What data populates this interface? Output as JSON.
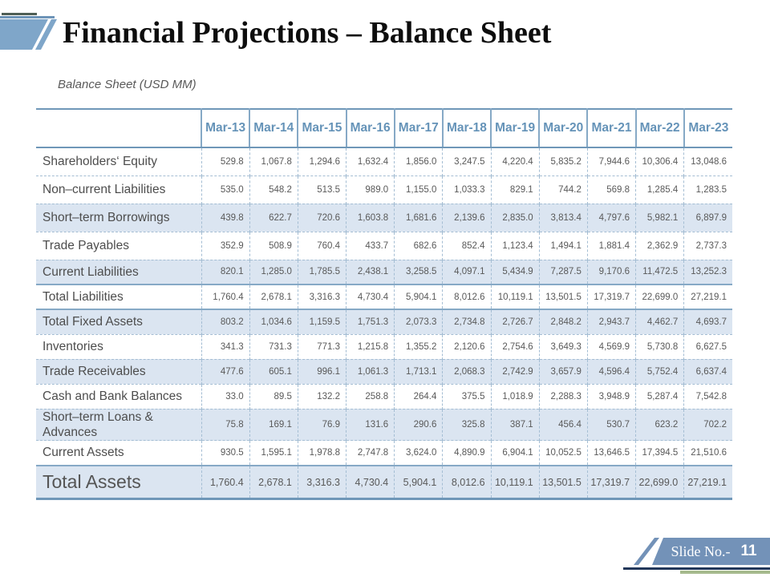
{
  "slide": {
    "title": "Financial Projections – Balance Sheet",
    "caption": "Balance Sheet (USD MM)"
  },
  "footer": {
    "label": "Slide No.-",
    "number": "11"
  },
  "table": {
    "columns": [
      "Mar-13",
      "Mar-14",
      "Mar-15",
      "Mar-16",
      "Mar-17",
      "Mar-18",
      "Mar-19",
      "Mar-20",
      "Mar-21",
      "Mar-22",
      "Mar-23"
    ],
    "rows": [
      {
        "label": "Shareholders‘ Equity",
        "shaded": false,
        "solid_top": false,
        "big": false,
        "values": [
          "529.8",
          "1,067.8",
          "1,294.6",
          "1,632.4",
          "1,856.0",
          "3,247.5",
          "4,220.4",
          "5,835.2",
          "7,944.6",
          "10,306.4",
          "13,048.6"
        ]
      },
      {
        "label": "Non–current Liabilities",
        "shaded": false,
        "solid_top": false,
        "big": false,
        "values": [
          "535.0",
          "548.2",
          "513.5",
          "989.0",
          "1,155.0",
          "1,033.3",
          "829.1",
          "744.2",
          "569.8",
          "1,285.4",
          "1,283.5"
        ]
      },
      {
        "label": "Short–term Borrowings",
        "shaded": true,
        "solid_top": false,
        "big": false,
        "values": [
          "439.8",
          "622.7",
          "720.6",
          "1,603.8",
          "1,681.6",
          "2,139.6",
          "2,835.0",
          "3,813.4",
          "4,797.6",
          "5,982.1",
          "6,897.9"
        ]
      },
      {
        "label": "Trade Payables",
        "shaded": false,
        "solid_top": false,
        "big": false,
        "values": [
          "352.9",
          "508.9",
          "760.4",
          "433.7",
          "682.6",
          "852.4",
          "1,123.4",
          "1,494.1",
          "1,881.4",
          "2,362.9",
          "2,737.3"
        ]
      },
      {
        "label": "Current Liabilities",
        "shaded": true,
        "solid_top": false,
        "big": false,
        "values": [
          "820.1",
          "1,285.0",
          "1,785.5",
          "2,438.1",
          "3,258.5",
          "4,097.1",
          "5,434.9",
          "7,287.5",
          "9,170.6",
          "11,472.5",
          "13,252.3"
        ]
      },
      {
        "label": "Total Liabilities",
        "shaded": false,
        "solid_top": true,
        "big": false,
        "values": [
          "1,760.4",
          "2,678.1",
          "3,316.3",
          "4,730.4",
          "5,904.1",
          "8,012.6",
          "10,119.1",
          "13,501.5",
          "17,319.7",
          "22,699.0",
          "27,219.1"
        ]
      },
      {
        "label": "Total Fixed Assets",
        "shaded": true,
        "solid_top": true,
        "big": false,
        "values": [
          "803.2",
          "1,034.6",
          "1,159.5",
          "1,751.3",
          "2,073.3",
          "2,734.8",
          "2,726.7",
          "2,848.2",
          "2,943.7",
          "4,462.7",
          "4,693.7"
        ]
      },
      {
        "label": "Inventories",
        "shaded": false,
        "solid_top": false,
        "big": false,
        "values": [
          "341.3",
          "731.3",
          "771.3",
          "1,215.8",
          "1,355.2",
          "2,120.6",
          "2,754.6",
          "3,649.3",
          "4,569.9",
          "5,730.8",
          "6,627.5"
        ]
      },
      {
        "label": "Trade Receivables",
        "shaded": true,
        "solid_top": false,
        "big": false,
        "values": [
          "477.6",
          "605.1",
          "996.1",
          "1,061.3",
          "1,713.1",
          "2,068.3",
          "2,742.9",
          "3,657.9",
          "4,596.4",
          "5,752.4",
          "6,637.4"
        ]
      },
      {
        "label": "Cash and Bank Balances",
        "shaded": false,
        "solid_top": false,
        "big": false,
        "values": [
          "33.0",
          "89.5",
          "132.2",
          "258.8",
          "264.4",
          "375.5",
          "1,018.9",
          "2,288.3",
          "3,948.9",
          "5,287.4",
          "7,542.8"
        ]
      },
      {
        "label": "Short–term Loans & Advances",
        "shaded": true,
        "solid_top": false,
        "big": false,
        "values": [
          "75.8",
          "169.1",
          "76.9",
          "131.6",
          "290.6",
          "325.8",
          "387.1",
          "456.4",
          "530.7",
          "623.2",
          "702.2"
        ]
      },
      {
        "label": "Current Assets",
        "shaded": false,
        "solid_top": false,
        "big": false,
        "values": [
          "930.5",
          "1,595.1",
          "1,978.8",
          "2,747.8",
          "3,624.0",
          "4,890.9",
          "6,904.1",
          "10,052.5",
          "13,646.5",
          "17,394.5",
          "21,510.6"
        ]
      },
      {
        "label": "Total Assets",
        "shaded": true,
        "solid_top": true,
        "big": true,
        "values": [
          "1,760.4",
          "2,678.1",
          "3,316.3",
          "4,730.4",
          "5,904.1",
          "8,012.6",
          "10,119.1",
          "13,501.5",
          "17,319.7",
          "22,699.0",
          "27,219.1"
        ]
      }
    ]
  },
  "colors": {
    "accent_blue": "#6f97b8",
    "header_text": "#6593b8",
    "row_shade": "#dbe5f1",
    "dashed_line": "#a4bdd3",
    "text_gray": "#595959",
    "title_black": "#0d0d0d",
    "deco_shape_blue": "#7fa6c9",
    "deco_dark_line": "#4e5e55",
    "footer_shape_blue": "#7392b8",
    "footer_navy_line": "#22375a",
    "footer_green_line": "#a6ba8d"
  }
}
